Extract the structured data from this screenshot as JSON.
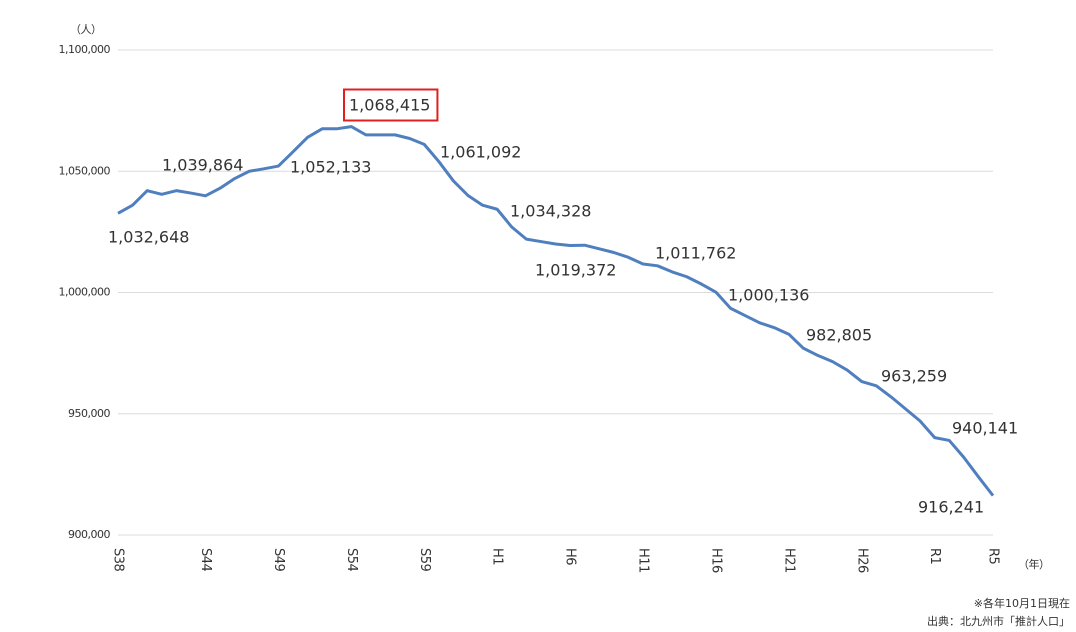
{
  "chart_data": {
    "type": "line",
    "y_unit": "（人）",
    "x_unit": "（年）",
    "notes": [
      "※各年10月1日現在",
      "出典：北九州市「推計人口」"
    ],
    "categories": [
      "S38",
      null,
      null,
      null,
      null,
      null,
      "S44",
      null,
      null,
      null,
      null,
      "S49",
      null,
      null,
      null,
      null,
      "S54",
      null,
      null,
      null,
      null,
      "S59",
      null,
      null,
      null,
      null,
      "H1",
      null,
      null,
      null,
      null,
      "H6",
      null,
      null,
      null,
      null,
      "H11",
      null,
      null,
      null,
      null,
      "H16",
      null,
      null,
      null,
      null,
      "H21",
      null,
      null,
      null,
      null,
      "H26",
      null,
      null,
      null,
      null,
      "R1",
      null,
      null,
      null,
      "R5"
    ],
    "series": [
      {
        "color": "#4f7fbf",
        "values": [
          1032648,
          1036000,
          1042000,
          1040500,
          1042000,
          1041000,
          1039864,
          1043000,
          1047000,
          1050000,
          1051000,
          1052133,
          1058000,
          1064000,
          1067500,
          1067500,
          1068415,
          1065000,
          1065000,
          1065000,
          1063500,
          1061092,
          1054000,
          1046000,
          1040000,
          1036000,
          1034328,
          1027000,
          1022000,
          1021000,
          1020000,
          1019372,
          1019500,
          1018000,
          1016500,
          1014500,
          1011762,
          1011000,
          1008500,
          1006500,
          1003500,
          1000136,
          993500,
          990500,
          987500,
          985500,
          982805,
          977000,
          974000,
          971500,
          968000,
          963259,
          961500,
          957000,
          952000,
          947000,
          940141,
          939000,
          932000,
          924000,
          916241
        ],
        "value_labels": [
          "1,032,648",
          null,
          null,
          null,
          null,
          null,
          "1,039,864",
          null,
          null,
          null,
          null,
          "1,052,133",
          null,
          null,
          null,
          null,
          "1,068,415",
          null,
          null,
          null,
          null,
          "1,061,092",
          null,
          null,
          null,
          null,
          "1,034,328",
          null,
          null,
          null,
          null,
          "1,019,372",
          null,
          null,
          null,
          null,
          "1,011,762",
          null,
          null,
          null,
          null,
          "1,000,136",
          null,
          null,
          null,
          null,
          "982,805",
          null,
          null,
          null,
          null,
          "963,259",
          null,
          null,
          null,
          null,
          "940,141",
          null,
          null,
          null,
          "916,241"
        ]
      }
    ],
    "ylim": [
      900000,
      1100000
    ],
    "yticks": [
      {
        "value": 900000,
        "label": "900,000"
      },
      {
        "value": 950000,
        "label": "950,000"
      },
      {
        "value": 1000000,
        "label": "1,000,000"
      },
      {
        "value": 1050000,
        "label": "1,050,000"
      },
      {
        "value": 1100000,
        "label": "1,100,000"
      }
    ],
    "grid": true
  }
}
